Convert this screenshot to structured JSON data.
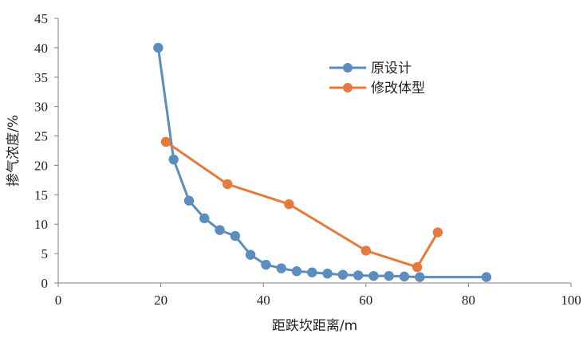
{
  "chart_data": {
    "type": "line",
    "xlabel": "距跌坎距离/m",
    "ylabel": "掺气浓度/%",
    "xlim": [
      0,
      100
    ],
    "ylim": [
      0,
      45
    ],
    "xticks": [
      0,
      20,
      40,
      60,
      80,
      100
    ],
    "yticks": [
      0,
      5,
      10,
      15,
      20,
      25,
      30,
      35,
      40,
      45
    ],
    "grid": false,
    "legend_position": "top-right",
    "series": [
      {
        "name": "原设计",
        "color": "#5B8DBE",
        "x": [
          19.5,
          22.5,
          25.5,
          28.5,
          31.5,
          34.5,
          37.5,
          40.5,
          43.5,
          46.5,
          49.5,
          52.5,
          55.5,
          58.5,
          61.5,
          64.5,
          67.5,
          70.5,
          83.5
        ],
        "y": [
          40.0,
          21.0,
          14.0,
          11.0,
          9.0,
          8.0,
          4.8,
          3.1,
          2.5,
          2.0,
          1.8,
          1.6,
          1.4,
          1.3,
          1.2,
          1.2,
          1.1,
          1.0,
          1.0
        ]
      },
      {
        "name": "修改体型",
        "color": "#E57A3C",
        "x": [
          21.0,
          33.0,
          45.0,
          60.0,
          70.0,
          74.0
        ],
        "y": [
          24.0,
          16.8,
          13.4,
          5.5,
          2.7,
          8.6
        ]
      }
    ]
  }
}
